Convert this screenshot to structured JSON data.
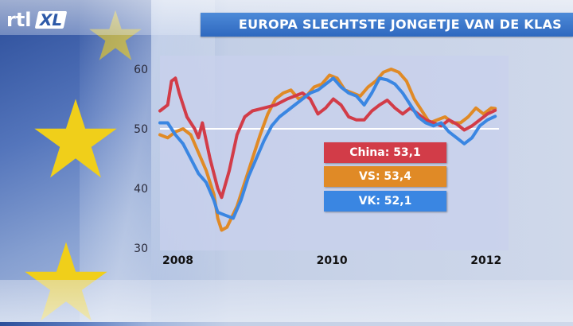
{
  "header": {
    "logo_text": "rtl",
    "logo_badge": "XL",
    "title": "EUROPA SLECHTSTE JONGETJE VAN DE KLAS"
  },
  "colors": {
    "china": "#d23c48",
    "vs": "#e08a26",
    "vk": "#3a86e2",
    "reference": "#ffffff",
    "star": "#f0cf1a"
  },
  "chart_data": {
    "type": "line",
    "title": "EUROPA SLECHTSTE JONGETJE VAN DE KLAS",
    "xlabel": "",
    "ylabel": "",
    "xlim": [
      2007.85,
      2012.25
    ],
    "ylim": [
      30,
      62
    ],
    "y_ticks": [
      30,
      40,
      50,
      60
    ],
    "x_ticks": [
      2008,
      2010,
      2012
    ],
    "reference_line": 50,
    "grid": false,
    "legend": "center-right labels",
    "series": [
      {
        "name": "China",
        "latest_label": "China: 53,1",
        "color_key": "china",
        "points": [
          [
            2007.85,
            53
          ],
          [
            2007.95,
            54
          ],
          [
            2008.0,
            58
          ],
          [
            2008.05,
            58.5
          ],
          [
            2008.1,
            56
          ],
          [
            2008.2,
            52
          ],
          [
            2008.3,
            50
          ],
          [
            2008.35,
            48.5
          ],
          [
            2008.4,
            51
          ],
          [
            2008.5,
            45
          ],
          [
            2008.6,
            40
          ],
          [
            2008.65,
            38.5
          ],
          [
            2008.75,
            43
          ],
          [
            2008.85,
            49
          ],
          [
            2008.95,
            52
          ],
          [
            2009.05,
            53
          ],
          [
            2009.2,
            53.5
          ],
          [
            2009.35,
            54
          ],
          [
            2009.5,
            55
          ],
          [
            2009.6,
            55.5
          ],
          [
            2009.7,
            56
          ],
          [
            2009.8,
            55
          ],
          [
            2009.9,
            52.5
          ],
          [
            2010.0,
            53.5
          ],
          [
            2010.1,
            55
          ],
          [
            2010.2,
            54
          ],
          [
            2010.3,
            52
          ],
          [
            2010.4,
            51.5
          ],
          [
            2010.5,
            51.5
          ],
          [
            2010.6,
            53
          ],
          [
            2010.7,
            54
          ],
          [
            2010.8,
            54.8
          ],
          [
            2010.9,
            53.5
          ],
          [
            2011.0,
            52.5
          ],
          [
            2011.1,
            53.5
          ],
          [
            2011.2,
            52.5
          ],
          [
            2011.3,
            51.5
          ],
          [
            2011.4,
            51
          ],
          [
            2011.5,
            50.5
          ],
          [
            2011.6,
            51.5
          ],
          [
            2011.7,
            50.8
          ],
          [
            2011.8,
            49.8
          ],
          [
            2011.9,
            50.5
          ],
          [
            2012.0,
            51.5
          ],
          [
            2012.1,
            52.5
          ],
          [
            2012.2,
            53.1
          ]
        ]
      },
      {
        "name": "VS",
        "latest_label": "VS: 53,4",
        "color_key": "vs",
        "points": [
          [
            2007.85,
            49
          ],
          [
            2007.95,
            48.5
          ],
          [
            2008.05,
            49.5
          ],
          [
            2008.15,
            50
          ],
          [
            2008.25,
            49
          ],
          [
            2008.35,
            46
          ],
          [
            2008.45,
            43
          ],
          [
            2008.55,
            39
          ],
          [
            2008.6,
            35
          ],
          [
            2008.65,
            33
          ],
          [
            2008.72,
            33.5
          ],
          [
            2008.85,
            37
          ],
          [
            2008.95,
            41
          ],
          [
            2009.05,
            45
          ],
          [
            2009.15,
            49
          ],
          [
            2009.25,
            52.5
          ],
          [
            2009.35,
            55
          ],
          [
            2009.45,
            56
          ],
          [
            2009.55,
            56.5
          ],
          [
            2009.65,
            55
          ],
          [
            2009.75,
            55.5
          ],
          [
            2009.85,
            57
          ],
          [
            2009.95,
            57.5
          ],
          [
            2010.05,
            59
          ],
          [
            2010.15,
            58.5
          ],
          [
            2010.25,
            56.5
          ],
          [
            2010.35,
            56
          ],
          [
            2010.45,
            55.5
          ],
          [
            2010.55,
            57
          ],
          [
            2010.65,
            58
          ],
          [
            2010.75,
            59.5
          ],
          [
            2010.85,
            60
          ],
          [
            2010.95,
            59.5
          ],
          [
            2011.05,
            58
          ],
          [
            2011.15,
            55
          ],
          [
            2011.25,
            53
          ],
          [
            2011.35,
            51
          ],
          [
            2011.45,
            51.5
          ],
          [
            2011.55,
            52
          ],
          [
            2011.65,
            51
          ],
          [
            2011.75,
            51
          ],
          [
            2011.85,
            52
          ],
          [
            2011.95,
            53.5
          ],
          [
            2012.05,
            52.5
          ],
          [
            2012.15,
            53.5
          ],
          [
            2012.2,
            53.4
          ]
        ]
      },
      {
        "name": "VK",
        "latest_label": "VK: 52,1",
        "color_key": "vk",
        "points": [
          [
            2007.85,
            51
          ],
          [
            2007.95,
            51
          ],
          [
            2008.05,
            49
          ],
          [
            2008.15,
            47.5
          ],
          [
            2008.25,
            45
          ],
          [
            2008.35,
            42.5
          ],
          [
            2008.45,
            41
          ],
          [
            2008.55,
            38
          ],
          [
            2008.6,
            36
          ],
          [
            2008.7,
            35.5
          ],
          [
            2008.8,
            35
          ],
          [
            2008.9,
            38
          ],
          [
            2009.0,
            42
          ],
          [
            2009.1,
            45
          ],
          [
            2009.2,
            48
          ],
          [
            2009.3,
            50.5
          ],
          [
            2009.4,
            52
          ],
          [
            2009.5,
            53
          ],
          [
            2009.6,
            54
          ],
          [
            2009.7,
            55
          ],
          [
            2009.8,
            56
          ],
          [
            2009.9,
            56.5
          ],
          [
            2010.0,
            57.5
          ],
          [
            2010.1,
            58.5
          ],
          [
            2010.2,
            57
          ],
          [
            2010.3,
            56
          ],
          [
            2010.4,
            55.5
          ],
          [
            2010.5,
            54
          ],
          [
            2010.6,
            56
          ],
          [
            2010.7,
            58.5
          ],
          [
            2010.8,
            58.2
          ],
          [
            2010.9,
            57.5
          ],
          [
            2011.0,
            56
          ],
          [
            2011.1,
            54
          ],
          [
            2011.2,
            52
          ],
          [
            2011.3,
            51
          ],
          [
            2011.4,
            50.5
          ],
          [
            2011.5,
            51
          ],
          [
            2011.6,
            49.5
          ],
          [
            2011.7,
            48.5
          ],
          [
            2011.8,
            47.5
          ],
          [
            2011.9,
            48.5
          ],
          [
            2012.0,
            50.5
          ],
          [
            2012.1,
            51.5
          ],
          [
            2012.2,
            52.1
          ]
        ]
      }
    ]
  }
}
